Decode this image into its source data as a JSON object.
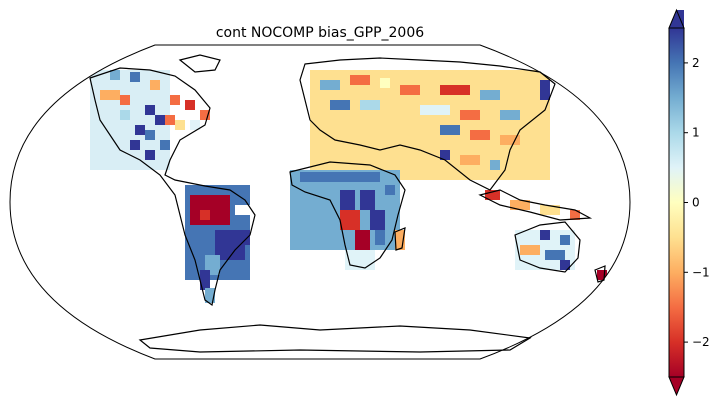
{
  "title": "cont NOCOMP bias_GPP_2006",
  "colorbar": {
    "colormap": "RdYlBu",
    "vmin": -2.5,
    "vmax": 2.5,
    "extend": "both",
    "ticks": [
      {
        "value": 2,
        "label": "2"
      },
      {
        "value": 1,
        "label": "1"
      },
      {
        "value": 0,
        "label": "0"
      },
      {
        "value": -1,
        "label": "−1"
      },
      {
        "value": -2,
        "label": "−2"
      }
    ]
  },
  "map": {
    "projection": "Robinson",
    "coastline_color": "#000000",
    "background": "#ffffff"
  }
}
